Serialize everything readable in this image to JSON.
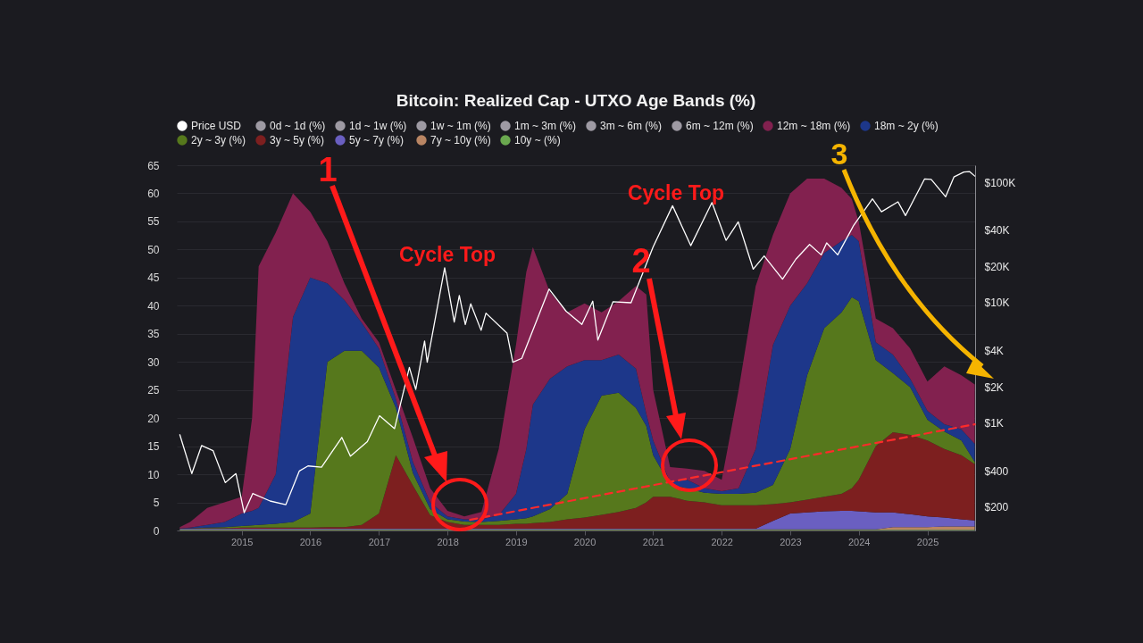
{
  "chart_data": {
    "type": "area",
    "title": "Bitcoin: Realized Cap - UTXO Age Bands (%)",
    "stacked": true,
    "legend": "top",
    "grid": "y",
    "log": "y2",
    "x": [
      "2014-02-05",
      "2014-04-01",
      "2014-07-01",
      "2014-10-01",
      "2015-01-01",
      "2015-02-25",
      "2015-04-01",
      "2015-07-01",
      "2015-10-01",
      "2016-01-01",
      "2016-04-01",
      "2016-07-01",
      "2016-10-01",
      "2017-01-01",
      "2017-04-01",
      "2017-07-01",
      "2017-10-01",
      "2018-01-01",
      "2018-04-01",
      "2018-07-01",
      "2018-10-01",
      "2019-01-01",
      "2019-02-25",
      "2019-04-01",
      "2019-07-01",
      "2019-10-01",
      "2020-01-01",
      "2020-04-01",
      "2020-07-01",
      "2020-10-01",
      "2020-11-25",
      "2021-01-01",
      "2021-04-01",
      "2021-07-01",
      "2021-10-01",
      "2022-01-01",
      "2022-04-01",
      "2022-07-01",
      "2022-10-01",
      "2023-01-01",
      "2023-04-01",
      "2023-07-01",
      "2023-10-01",
      "2023-11-25",
      "2024-01-01",
      "2024-04-01",
      "2024-07-01",
      "2024-10-01",
      "2025-01-01",
      "2025-04-01",
      "2025-07-01",
      "2025-09-10"
    ],
    "xlim": [
      "2014-01-20",
      "2025-09-12"
    ],
    "xticks": [
      "2015",
      "2016",
      "2017",
      "2018",
      "2019",
      "2020",
      "2021",
      "2022",
      "2023",
      "2024",
      "2025"
    ],
    "ylim": [
      0,
      65
    ],
    "yticks": [
      0,
      5,
      10,
      15,
      20,
      25,
      30,
      35,
      40,
      45,
      50,
      55,
      60,
      65
    ],
    "y2lim": [
      128,
      139000
    ],
    "y2ticks": [
      {
        "value": 200,
        "label": "$200"
      },
      {
        "value": 400,
        "label": "$400"
      },
      {
        "value": 1000,
        "label": "$1K"
      },
      {
        "value": 2000,
        "label": "$2K"
      },
      {
        "value": 4000,
        "label": "$4K"
      },
      {
        "value": 10000,
        "label": "$10K"
      },
      {
        "value": 20000,
        "label": "$20K"
      },
      {
        "value": 40000,
        "label": "$40K"
      },
      {
        "value": 100000,
        "label": "$100K"
      }
    ],
    "annotations": [
      "1",
      "Cycle Top",
      "2",
      "Cycle Top",
      "3"
    ],
    "series": [
      {
        "name": "Price USD",
        "type": "line",
        "axis": "y2",
        "color": "#ffffff",
        "marker": "none",
        "x": [
          "2014-02-05",
          "2014-04-10",
          "2014-06-01",
          "2014-08-01",
          "2014-10-05",
          "2014-12-01",
          "2015-01-14",
          "2015-03-01",
          "2015-06-01",
          "2015-08-24",
          "2015-11-04",
          "2015-12-20",
          "2016-03-01",
          "2016-06-17",
          "2016-08-02",
          "2016-10-31",
          "2017-01-04",
          "2017-03-25",
          "2017-06-12",
          "2017-07-16",
          "2017-09-01",
          "2017-09-15",
          "2017-12-17",
          "2018-02-06",
          "2018-03-05",
          "2018-04-06",
          "2018-05-05",
          "2018-06-29",
          "2018-07-25",
          "2018-11-14",
          "2018-12-15",
          "2019-02-01",
          "2019-06-26",
          "2019-09-25",
          "2019-12-18",
          "2020-02-14",
          "2020-03-12",
          "2020-06-01",
          "2020-09-05",
          "2020-12-31",
          "2021-04-14",
          "2021-07-20",
          "2021-11-10",
          "2022-01-24",
          "2022-03-30",
          "2022-06-18",
          "2022-08-15",
          "2022-11-21",
          "2023-01-31",
          "2023-04-14",
          "2023-06-15",
          "2023-07-14",
          "2023-09-11",
          "2023-12-05",
          "2024-03-14",
          "2024-05-01",
          "2024-07-28",
          "2024-09-06",
          "2024-12-17",
          "2025-01-21",
          "2025-04-08",
          "2025-05-22",
          "2025-07-14",
          "2025-08-14",
          "2025-09-10"
        ],
        "values": [
          800,
          380,
          650,
          590,
          320,
          380,
          180,
          260,
          225,
          210,
          400,
          440,
          430,
          760,
          530,
          700,
          1150,
          900,
          2900,
          1900,
          4800,
          3200,
          19500,
          6900,
          11500,
          6600,
          9800,
          5900,
          8200,
          5600,
          3200,
          3450,
          13000,
          8500,
          6600,
          10300,
          4900,
          10200,
          10000,
          29000,
          64000,
          29800,
          68000,
          33000,
          47000,
          19000,
          24500,
          15700,
          23000,
          30500,
          25000,
          31400,
          25000,
          44000,
          73000,
          57000,
          69000,
          53000,
          107000,
          106000,
          76000,
          111000,
          122000,
          123000,
          113000
        ]
      },
      {
        "name": "10y ~ (%)",
        "color": "#6aa84f",
        "values": [
          0.1,
          0.1,
          0.1,
          0.1,
          0.1,
          0.1,
          0.1,
          0.1,
          0.1,
          0.1,
          0.1,
          0.1,
          0.1,
          0.1,
          0.1,
          0.1,
          0.1,
          0.1,
          0.1,
          0.1,
          0.1,
          0.1,
          0.1,
          0.1,
          0.1,
          0.1,
          0.1,
          0.1,
          0.1,
          0.1,
          0.1,
          0.1,
          0.1,
          0.1,
          0.1,
          0.1,
          0.1,
          0.1,
          0.1,
          0.1,
          0.1,
          0.1,
          0.1,
          0.1,
          0.1,
          0.1,
          0.1,
          0.1,
          0.1,
          0.1,
          0.1,
          0.1
        ]
      },
      {
        "name": "7y ~ 10y (%)",
        "color": "#b98563",
        "values": [
          0.1,
          0.1,
          0.1,
          0.1,
          0.1,
          0.1,
          0.1,
          0.1,
          0.1,
          0.1,
          0.1,
          0.1,
          0.1,
          0.1,
          0.1,
          0.1,
          0.1,
          0.1,
          0.1,
          0.1,
          0.1,
          0.1,
          0.1,
          0.1,
          0.1,
          0.1,
          0.1,
          0.1,
          0.1,
          0.1,
          0.1,
          0.1,
          0.1,
          0.1,
          0.1,
          0.1,
          0.1,
          0.1,
          0.1,
          0.1,
          0.1,
          0.1,
          0.1,
          0.1,
          0.1,
          0.1,
          0.5,
          0.5,
          0.5,
          0.6,
          0.6,
          0.6
        ]
      },
      {
        "name": "5y ~ 7y (%)",
        "color": "#6a5fc1",
        "values": [
          0.1,
          0.1,
          0.1,
          0.1,
          0.1,
          0.1,
          0.1,
          0.1,
          0.1,
          0.1,
          0.1,
          0.1,
          0.1,
          0.1,
          0.1,
          0.1,
          0.1,
          0.1,
          0.1,
          0.1,
          0.1,
          0.1,
          0.1,
          0.1,
          0.1,
          0.1,
          0.1,
          0.1,
          0.1,
          0.1,
          0.1,
          0.1,
          0.1,
          0.1,
          0.1,
          0.1,
          0.1,
          0.1,
          1.5,
          2.8,
          3.0,
          3.2,
          3.3,
          3.3,
          3.2,
          3.0,
          2.6,
          2.3,
          1.9,
          1.6,
          1.3,
          1.1
        ]
      },
      {
        "name": "3y ~ 5y (%)",
        "color": "#7d1f1f",
        "values": [
          0.1,
          0.1,
          0.1,
          0.1,
          0.2,
          0.2,
          0.2,
          0.2,
          0.2,
          0.2,
          0.3,
          0.3,
          0.7,
          2.7,
          13.1,
          7.7,
          2.4,
          1.2,
          0.7,
          0.7,
          0.7,
          0.9,
          0.9,
          1,
          1.2,
          1.7,
          2,
          2.5,
          3,
          3.7,
          4.7,
          5.7,
          5.7,
          5,
          4.7,
          4.2,
          4.2,
          4.2,
          3,
          2,
          2.3,
          2.6,
          3,
          4,
          5.6,
          11.8,
          14.3,
          14.1,
          13.5,
          12.2,
          11.4,
          10
        ]
      },
      {
        "name": "2y ~ 3y (%)",
        "color": "#56781c",
        "values": [
          0,
          0,
          0.1,
          0.2,
          0.3,
          0.4,
          0.5,
          0.7,
          1,
          2.5,
          29.4,
          31.4,
          31,
          26,
          8.4,
          2.2,
          1.1,
          0.5,
          0.6,
          0.5,
          0.7,
          0.8,
          1,
          1.2,
          2.3,
          4.5,
          15.7,
          21.2,
          21.2,
          17.8,
          13.6,
          7.4,
          2.1,
          2.2,
          1.7,
          2,
          2,
          2.2,
          3.4,
          9.5,
          22.1,
          30,
          32.3,
          34,
          31.8,
          15.3,
          10.5,
          8.5,
          3.7,
          3.1,
          2.6,
          0.4
        ]
      },
      {
        "name": "18m ~ 2y (%)",
        "color": "#1d378a",
        "values": [
          0,
          0.1,
          0.5,
          0.9,
          2.2,
          2.6,
          3,
          8.8,
          36.5,
          42,
          14,
          9,
          5,
          3.4,
          1.6,
          2,
          1.2,
          0.5,
          0.4,
          0.5,
          1,
          4.5,
          12.3,
          19.9,
          23.2,
          22.7,
          12.3,
          6.3,
          6.8,
          7,
          2.2,
          2.6,
          0.5,
          1.5,
          0.8,
          0.5,
          1,
          7.8,
          24.9,
          25.5,
          16.4,
          13.4,
          12.7,
          11.1,
          10.7,
          3.2,
          3.3,
          1.5,
          1.6,
          1.3,
          2,
          3.2
        ]
      },
      {
        "name": "12m ~ 18m (%)",
        "color": "#82214f",
        "values": [
          0.2,
          1,
          3,
          3.5,
          3,
          16.5,
          43,
          43,
          22,
          11.7,
          7.5,
          3,
          0.7,
          1.1,
          1.6,
          4.3,
          2.5,
          1,
          0.5,
          1.3,
          11.8,
          26.5,
          31.5,
          28,
          15.4,
          9.6,
          10.1,
          8.5,
          9.5,
          14.7,
          21.2,
          9,
          2.7,
          2,
          3.1,
          2,
          17.5,
          29,
          19.6,
          20,
          18.6,
          13.2,
          9.5,
          6.4,
          3.5,
          4.2,
          4.7,
          5.4,
          5.2,
          10.3,
          9.6,
          10.6
        ]
      },
      {
        "name": "6m ~ 12m (%)",
        "color": "#9e9aa3",
        "values": [
          null,
          null,
          null,
          null,
          null,
          null,
          null,
          null,
          null,
          null,
          null,
          null,
          null,
          null,
          null,
          null,
          null,
          null,
          null,
          null,
          null,
          null,
          null,
          null,
          null,
          null,
          null,
          null,
          null,
          null,
          null,
          null,
          null,
          null,
          null,
          null,
          null,
          null,
          null,
          null,
          null,
          null,
          null,
          null,
          null,
          null,
          null,
          null,
          null,
          null,
          null,
          null
        ]
      },
      {
        "name": "3m ~ 6m (%)",
        "color": "#9e9aa3",
        "values": [
          null,
          null,
          null,
          null,
          null,
          null,
          null,
          null,
          null,
          null,
          null,
          null,
          null,
          null,
          null,
          null,
          null,
          null,
          null,
          null,
          null,
          null,
          null,
          null,
          null,
          null,
          null,
          null,
          null,
          null,
          null,
          null,
          null,
          null,
          null,
          null,
          null,
          null,
          null,
          null,
          null,
          null,
          null,
          null,
          null,
          null,
          null,
          null,
          null,
          null,
          null,
          null
        ]
      },
      {
        "name": "1m ~ 3m (%)",
        "color": "#9e9aa3",
        "values": [
          null,
          null,
          null,
          null,
          null,
          null,
          null,
          null,
          null,
          null,
          null,
          null,
          null,
          null,
          null,
          null,
          null,
          null,
          null,
          null,
          null,
          null,
          null,
          null,
          null,
          null,
          null,
          null,
          null,
          null,
          null,
          null,
          null,
          null,
          null,
          null,
          null,
          null,
          null,
          null,
          null,
          null,
          null,
          null,
          null,
          null,
          null,
          null,
          null,
          null,
          null,
          null
        ]
      },
      {
        "name": "1w ~ 1m (%)",
        "color": "#9e9aa3",
        "values": [
          null,
          null,
          null,
          null,
          null,
          null,
          null,
          null,
          null,
          null,
          null,
          null,
          null,
          null,
          null,
          null,
          null,
          null,
          null,
          null,
          null,
          null,
          null,
          null,
          null,
          null,
          null,
          null,
          null,
          null,
          null,
          null,
          null,
          null,
          null,
          null,
          null,
          null,
          null,
          null,
          null,
          null,
          null,
          null,
          null,
          null,
          null,
          null,
          null,
          null,
          null,
          null
        ]
      },
      {
        "name": "1d ~ 1w (%)",
        "color": "#9e9aa3",
        "values": [
          null,
          null,
          null,
          null,
          null,
          null,
          null,
          null,
          null,
          null,
          null,
          null,
          null,
          null,
          null,
          null,
          null,
          null,
          null,
          null,
          null,
          null,
          null,
          null,
          null,
          null,
          null,
          null,
          null,
          null,
          null,
          null,
          null,
          null,
          null,
          null,
          null,
          null,
          null,
          null,
          null,
          null,
          null,
          null,
          null,
          null,
          null,
          null,
          null,
          null,
          null,
          null
        ]
      },
      {
        "name": "0d ~ 1d (%)",
        "color": "#9e9aa3",
        "values": [
          null,
          null,
          null,
          null,
          null,
          null,
          null,
          null,
          null,
          null,
          null,
          null,
          null,
          null,
          null,
          null,
          null,
          null,
          null,
          null,
          null,
          null,
          null,
          null,
          null,
          null,
          null,
          null,
          null,
          null,
          null,
          null,
          null,
          null,
          null,
          null,
          null,
          null,
          null,
          null,
          null,
          null,
          null,
          null,
          null,
          null,
          null,
          null,
          null,
          null,
          null,
          null
        ]
      },
      {
        "type": "line",
        "color": "#ff2a2a",
        "line_style": "dashed",
        "x": [
          "2018-05-01",
          "2025-09-10"
        ],
        "values": [
          1.9,
          18.9
        ]
      }
    ]
  }
}
